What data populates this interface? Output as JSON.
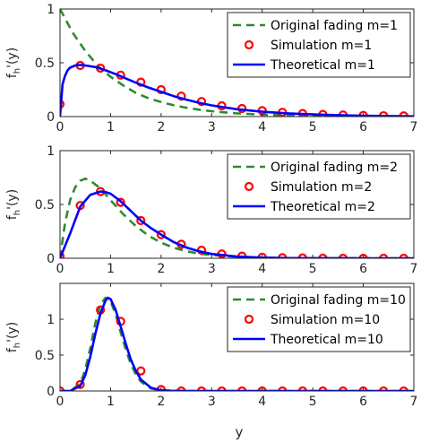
{
  "figure": {
    "xlabel": "y",
    "ylabel_main": "f",
    "ylabel_sub": "h",
    "ylabel_rest": "'(y)"
  },
  "colors": {
    "original": "#2e8b2e",
    "simulation": "#ff0000",
    "theoretical": "#0000ff"
  },
  "chart_data": [
    {
      "type": "line",
      "m": 1,
      "xlim": [
        0,
        7
      ],
      "ylim": [
        0,
        1
      ],
      "xticks": [
        0,
        1,
        2,
        3,
        4,
        5,
        6,
        7
      ],
      "yticks": [
        0,
        0.5,
        1
      ],
      "ytick_labels": [
        "0",
        "0.5",
        "1"
      ],
      "xlabel": "",
      "legend_position": "top-right",
      "series": [
        {
          "name": "Original fading m=1",
          "style": "dashed",
          "x": [
            0,
            0.25,
            0.5,
            0.75,
            1,
            1.25,
            1.5,
            1.75,
            2,
            2.25,
            2.5,
            2.75,
            3,
            3.25,
            3.5,
            3.75,
            4,
            4.5,
            5,
            5.5,
            6,
            6.5,
            7
          ],
          "y": [
            1.0,
            0.78,
            0.61,
            0.47,
            0.37,
            0.29,
            0.22,
            0.17,
            0.135,
            0.105,
            0.082,
            0.064,
            0.05,
            0.039,
            0.03,
            0.024,
            0.018,
            0.011,
            0.007,
            0.004,
            0.0025,
            0.0015,
            0.001
          ]
        },
        {
          "name": "Simulation m=1",
          "style": "markers",
          "x": [
            0.0,
            0.4,
            0.8,
            1.2,
            1.6,
            2.0,
            2.4,
            2.8,
            3.2,
            3.6,
            4.0,
            4.4,
            4.8,
            5.2,
            5.6,
            6.0,
            6.4,
            6.8
          ],
          "y": [
            0.115,
            0.475,
            0.45,
            0.385,
            0.32,
            0.25,
            0.19,
            0.14,
            0.1,
            0.075,
            0.055,
            0.04,
            0.028,
            0.02,
            0.015,
            0.011,
            0.008,
            0.006
          ]
        },
        {
          "name": "Theoretical m=1",
          "style": "solid",
          "x": [
            0.0,
            0.05,
            0.1,
            0.15,
            0.2,
            0.3,
            0.4,
            0.5,
            0.7,
            0.9,
            1.1,
            1.3,
            1.5,
            1.75,
            2.0,
            2.25,
            2.5,
            2.75,
            3.0,
            3.5,
            4.0,
            4.5,
            5.0,
            5.5,
            6.0,
            6.5,
            7.0
          ],
          "y": [
            0.0,
            0.3,
            0.38,
            0.43,
            0.455,
            0.475,
            0.48,
            0.475,
            0.46,
            0.43,
            0.395,
            0.355,
            0.315,
            0.27,
            0.23,
            0.19,
            0.157,
            0.128,
            0.104,
            0.068,
            0.045,
            0.03,
            0.02,
            0.013,
            0.008,
            0.005,
            0.003
          ]
        }
      ]
    },
    {
      "type": "line",
      "m": 2,
      "xlim": [
        0,
        7
      ],
      "ylim": [
        0,
        1
      ],
      "xticks": [
        0,
        1,
        2,
        3,
        4,
        5,
        6,
        7
      ],
      "yticks": [
        0,
        0.5,
        1
      ],
      "ytick_labels": [
        "0",
        "0.5",
        "1"
      ],
      "xlabel": "",
      "legend_position": "top-right",
      "series": [
        {
          "name": "Original fading m=2",
          "style": "dashed",
          "x": [
            0,
            0.1,
            0.2,
            0.3,
            0.4,
            0.5,
            0.6,
            0.8,
            1.0,
            1.25,
            1.5,
            1.75,
            2.0,
            2.25,
            2.5,
            2.75,
            3.0,
            3.5,
            4.0,
            4.5,
            5.0,
            6.0,
            7.0
          ],
          "y": [
            0.0,
            0.33,
            0.54,
            0.66,
            0.72,
            0.74,
            0.72,
            0.65,
            0.54,
            0.41,
            0.3,
            0.21,
            0.145,
            0.098,
            0.065,
            0.043,
            0.03,
            0.013,
            0.005,
            0.002,
            0.001,
            0.0,
            0.0
          ]
        },
        {
          "name": "Simulation m=2",
          "style": "markers",
          "x": [
            0.0,
            0.4,
            0.8,
            1.2,
            1.6,
            2.0,
            2.4,
            2.8,
            3.2,
            3.6,
            4.0,
            4.4,
            4.8,
            5.2,
            5.6,
            6.0,
            6.4,
            6.8
          ],
          "y": [
            0.02,
            0.49,
            0.62,
            0.52,
            0.35,
            0.22,
            0.13,
            0.075,
            0.04,
            0.02,
            0.01,
            0.005,
            0.003,
            0.001,
            0.0,
            0.0,
            0.0,
            0.0
          ]
        },
        {
          "name": "Theoretical m=2",
          "style": "solid",
          "x": [
            0.0,
            0.2,
            0.4,
            0.6,
            0.8,
            0.9,
            1.0,
            1.2,
            1.4,
            1.6,
            1.8,
            2.0,
            2.25,
            2.5,
            2.75,
            3.0,
            3.5,
            4.0,
            4.5,
            5.0,
            6.0,
            7.0
          ],
          "y": [
            0.0,
            0.23,
            0.48,
            0.59,
            0.62,
            0.615,
            0.6,
            0.53,
            0.44,
            0.35,
            0.28,
            0.22,
            0.15,
            0.1,
            0.065,
            0.04,
            0.016,
            0.006,
            0.002,
            0.001,
            0.0,
            0.0
          ]
        }
      ]
    },
    {
      "type": "line",
      "m": 10,
      "xlim": [
        0,
        7
      ],
      "ylim": [
        0,
        1.5
      ],
      "xticks": [
        0,
        1,
        2,
        3,
        4,
        5,
        6,
        7
      ],
      "yticks": [
        0,
        0.5,
        1
      ],
      "ytick_labels": [
        "0",
        "0.5",
        "1"
      ],
      "xlabel": "y",
      "legend_position": "top-right",
      "series": [
        {
          "name": "Original fading m=10",
          "style": "dashed",
          "x": [
            0.0,
            0.2,
            0.4,
            0.5,
            0.6,
            0.7,
            0.8,
            0.9,
            1.0,
            1.1,
            1.2,
            1.3,
            1.4,
            1.5,
            1.6,
            1.8,
            2.0,
            2.5,
            3.0,
            7.0
          ],
          "y": [
            0.0,
            0.002,
            0.1,
            0.3,
            0.6,
            0.95,
            1.2,
            1.3,
            1.25,
            1.07,
            0.82,
            0.58,
            0.38,
            0.23,
            0.13,
            0.035,
            0.008,
            0.0,
            0.0,
            0.0
          ]
        },
        {
          "name": "Simulation m=10",
          "style": "markers",
          "x": [
            0.0,
            0.4,
            0.8,
            1.2,
            1.6,
            2.0,
            2.4,
            2.8,
            3.2,
            3.6,
            4.0,
            4.4,
            4.8,
            5.2,
            5.6,
            6.0,
            6.4,
            6.8
          ],
          "y": [
            0.0,
            0.09,
            1.13,
            0.97,
            0.28,
            0.02,
            0.0,
            0.0,
            0.0,
            0.0,
            0.0,
            0.0,
            0.0,
            0.0,
            0.0,
            0.0,
            0.0,
            0.0
          ]
        },
        {
          "name": "Theoretical m=10",
          "style": "solid",
          "x": [
            0.0,
            0.2,
            0.4,
            0.5,
            0.6,
            0.7,
            0.8,
            0.9,
            0.95,
            1.0,
            1.1,
            1.2,
            1.3,
            1.4,
            1.5,
            1.6,
            1.8,
            2.0,
            2.2,
            2.5,
            3.0,
            7.0
          ],
          "y": [
            0.0,
            0.001,
            0.07,
            0.22,
            0.48,
            0.8,
            1.08,
            1.26,
            1.3,
            1.28,
            1.13,
            0.9,
            0.66,
            0.44,
            0.28,
            0.16,
            0.045,
            0.01,
            0.002,
            0.0,
            0.0,
            0.0
          ]
        }
      ]
    }
  ]
}
